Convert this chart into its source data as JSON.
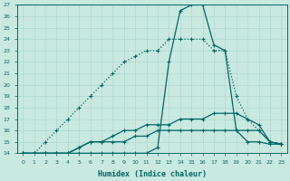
{
  "xlabel": "Humidex (Indice chaleur)",
  "background_color": "#c8e8e0",
  "line_color": "#006666",
  "grid_color": "#b0d8d0",
  "xlim": [
    0,
    23
  ],
  "ylim": [
    14,
    27
  ],
  "yticks": [
    14,
    15,
    16,
    17,
    18,
    19,
    20,
    21,
    22,
    23,
    24,
    25,
    26,
    27
  ],
  "xticks": [
    0,
    1,
    2,
    3,
    4,
    5,
    6,
    7,
    8,
    9,
    10,
    11,
    12,
    13,
    14,
    15,
    16,
    17,
    18,
    19,
    20,
    21,
    22,
    23
  ],
  "series": {
    "dotted_line": [
      14,
      14,
      15,
      16,
      17,
      18,
      19,
      20,
      21,
      22,
      22.5,
      23,
      23,
      24,
      24,
      24,
      24,
      23,
      23,
      19,
      17,
      16,
      15,
      14.8
    ],
    "main_peak": [
      14,
      14,
      14,
      14,
      14,
      14,
      14,
      14,
      14,
      14,
      14,
      14,
      14.5,
      22,
      26.5,
      27,
      27,
      23.5,
      23,
      16,
      15,
      15,
      14.8,
      14.8
    ],
    "mid_line": [
      14,
      14,
      14,
      14,
      14,
      14.5,
      15,
      15,
      15.5,
      16,
      16,
      16.5,
      16.5,
      16.5,
      17,
      17,
      17,
      17.5,
      17.5,
      17.5,
      17,
      16.5,
      15,
      14.8
    ],
    "flat_line": [
      14,
      14,
      14,
      14,
      14,
      14.5,
      15,
      15,
      15,
      15,
      15.5,
      15.5,
      16,
      16,
      16,
      16,
      16,
      16,
      16,
      16,
      16,
      16,
      15,
      14.8
    ]
  }
}
